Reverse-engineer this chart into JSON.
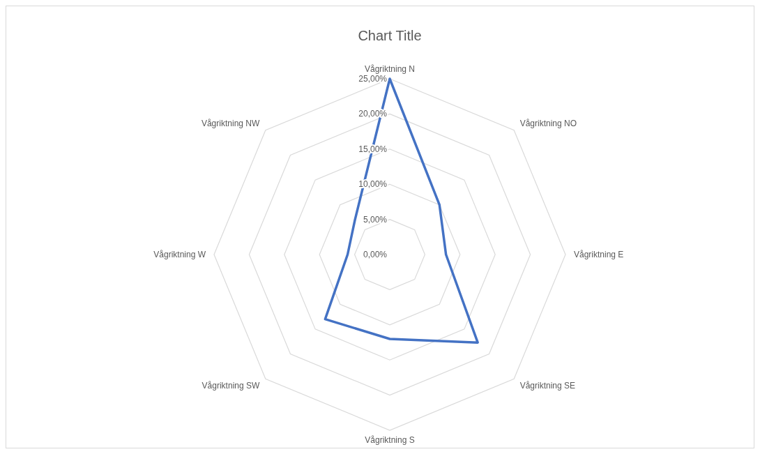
{
  "chart_data": {
    "type": "radar",
    "title": "Chart Title",
    "categories": [
      "Vågriktning N",
      "Vågriktning NO",
      "Vågriktning E",
      "Vågriktning SE",
      "Vågriktning S",
      "Vågriktning SW",
      "Vågriktning W",
      "Vågriktning NW"
    ],
    "series": [
      {
        "color": "#4472c4",
        "values": [
          25,
          10,
          8,
          17.7,
          12,
          13,
          6,
          7
        ]
      }
    ],
    "ylim": [
      0,
      25
    ],
    "yticks": [
      {
        "value": 0,
        "label": "0,00%"
      },
      {
        "value": 5,
        "label": "5,00%"
      },
      {
        "value": 10,
        "label": "10,00%"
      },
      {
        "value": 15,
        "label": "15,00%"
      },
      {
        "value": 20,
        "label": "20,00%"
      },
      {
        "value": 25,
        "label": "25,00%"
      }
    ],
    "grid": true,
    "marker": "none"
  }
}
